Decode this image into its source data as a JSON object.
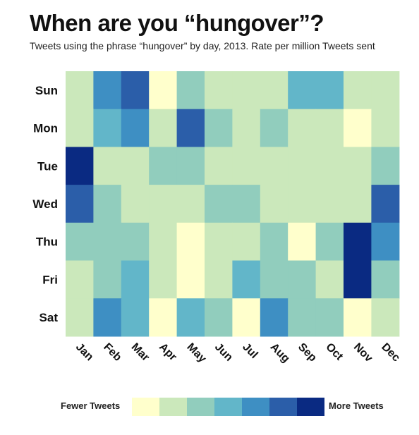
{
  "title": "When are you “hungover”?",
  "subtitle": "Tweets using the phrase “hungover” by day, 2013. Rate per million Tweets sent",
  "legend": {
    "low_label": "Fewer Tweets",
    "high_label": "More Tweets",
    "colors": [
      "#ffffcc",
      "#cbe8bb",
      "#91cdbd",
      "#62b6c9",
      "#3e8fc3",
      "#2b5ea9",
      "#0a2a82"
    ]
  },
  "chart_data": {
    "type": "heatmap",
    "title": "When are you “hungover”?",
    "subtitle": "Tweets using the phrase “hungover” by day, 2013. Rate per million Tweets sent",
    "x": [
      "Jan",
      "Feb",
      "Mar",
      "Apr",
      "May",
      "Jun",
      "Jul",
      "Aug",
      "Sep",
      "Oct",
      "Nov",
      "Dec"
    ],
    "y": [
      "Sun",
      "Mon",
      "Tue",
      "Wed",
      "Thu",
      "Fri",
      "Sat"
    ],
    "value_scale": "ordinal color bins 0 (Fewer Tweets) to 6 (More Tweets)",
    "values": [
      [
        1,
        4,
        5,
        0,
        2,
        1,
        1,
        1,
        3,
        3,
        1,
        1
      ],
      [
        1,
        3,
        4,
        1,
        5,
        2,
        1,
        2,
        1,
        1,
        0,
        1
      ],
      [
        6,
        1,
        1,
        2,
        2,
        1,
        1,
        1,
        1,
        1,
        1,
        2
      ],
      [
        5,
        2,
        1,
        1,
        1,
        2,
        2,
        1,
        1,
        1,
        1,
        5
      ],
      [
        2,
        2,
        2,
        1,
        0,
        1,
        1,
        2,
        0,
        2,
        6,
        4
      ],
      [
        1,
        2,
        3,
        1,
        0,
        1,
        3,
        2,
        2,
        1,
        6,
        2
      ],
      [
        1,
        4,
        3,
        0,
        3,
        2,
        0,
        4,
        2,
        2,
        0,
        1
      ]
    ],
    "legend": [
      "Fewer Tweets",
      "More Tweets"
    ],
    "grid": false
  }
}
